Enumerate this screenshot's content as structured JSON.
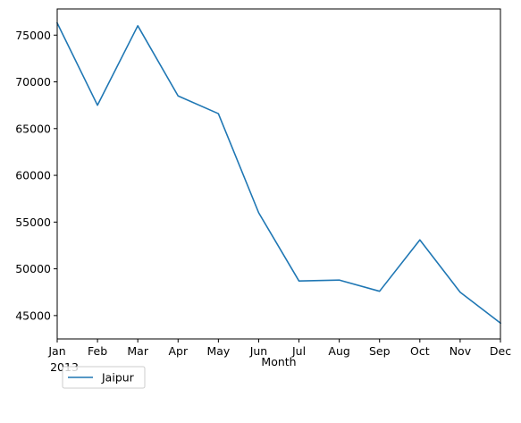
{
  "chart_data": {
    "type": "line",
    "title": "",
    "xlabel": "Month",
    "ylabel": "",
    "x": [
      "Jan",
      "Feb",
      "Mar",
      "Apr",
      "May",
      "Jun",
      "Jul",
      "Aug",
      "Sep",
      "Oct",
      "Nov",
      "Dec"
    ],
    "x_year_label": "2013",
    "ylim": [
      42500,
      77800
    ],
    "yticks": [
      45000,
      50000,
      55000,
      60000,
      65000,
      70000,
      75000
    ],
    "grid": false,
    "legend_position": "below-left",
    "series": [
      {
        "name": "Jaipur",
        "color": "#1f77b4",
        "values": [
          76300,
          67500,
          76000,
          68500,
          66600,
          56000,
          48700,
          48800,
          47600,
          53100,
          47500,
          44200
        ]
      }
    ]
  }
}
